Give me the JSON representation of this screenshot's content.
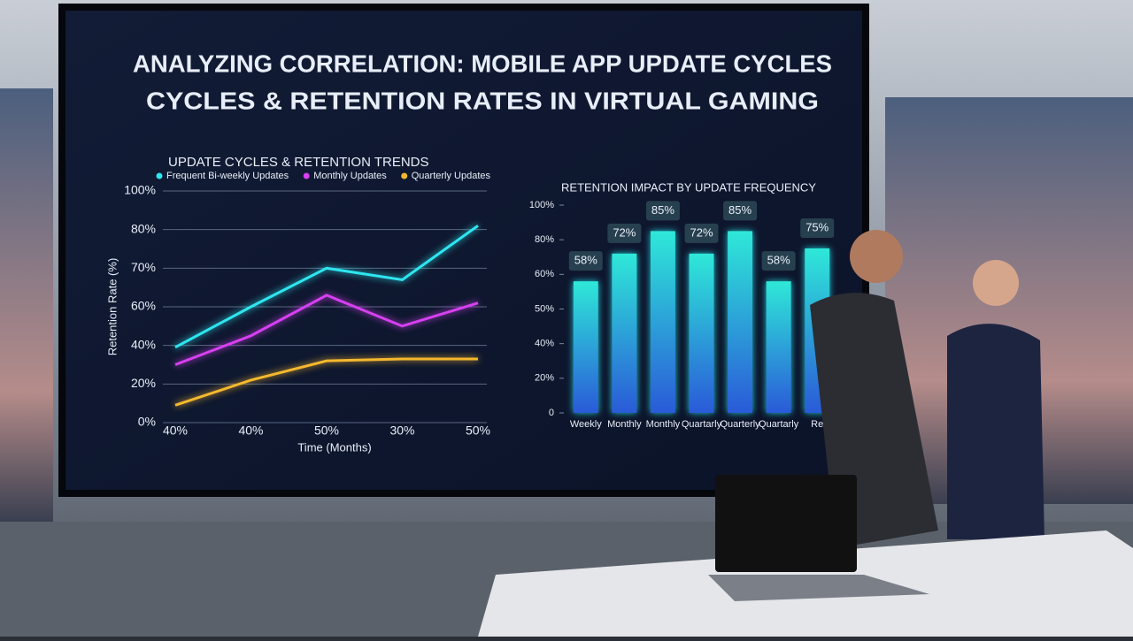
{
  "screen_title": [
    "ANALYZING CORRELATION: MOBILE APP UPDATE CYCLES",
    "CYCLES & RETENTION RATES IN VIRTUAL GAMING"
  ],
  "chart_data": [
    {
      "type": "line",
      "title": "UPDATE CYCLES & RETENTION TRENDS",
      "x_label": "Time (Months)",
      "y_label": "Retention Rate (%)",
      "categories": [
        "40%",
        "40%",
        "50%",
        "30%",
        "50%"
      ],
      "series": [
        {
          "name": "Frequent Bi-weekly Updates",
          "color": "#2ee6f0",
          "values": [
            39,
            60,
            70,
            67,
            82
          ]
        },
        {
          "name": "Monthly Updates",
          "color": "#d640f0",
          "values": [
            30,
            45,
            63,
            50,
            61
          ]
        },
        {
          "name": "Quarterly Updates",
          "color": "#f5b82e",
          "values": [
            9,
            22,
            32,
            33,
            33
          ]
        }
      ],
      "ylim": [
        0,
        100
      ],
      "yticks": [
        {
          "value": 0,
          "label": "0%"
        },
        {
          "value": 20,
          "label": "20%"
        },
        {
          "value": 40,
          "label": "40%"
        },
        {
          "value": 60,
          "label": "60%"
        },
        {
          "value": 70,
          "label": "70%"
        },
        {
          "value": 80,
          "label": "80%"
        },
        {
          "value": 100,
          "label": "100%"
        }
      ],
      "grid": true
    },
    {
      "type": "bar",
      "title": "RETENTION IMPACT BY UPDATE FREQUENCY",
      "categories": [
        "Weekly",
        "Monthly",
        "Monthly",
        "Quartarly",
        "Quarterly",
        "Quartarly",
        "Re"
      ],
      "values": [
        58,
        72,
        85,
        72,
        85,
        58,
        75
      ],
      "value_labels": [
        "58%",
        "72%",
        "85%",
        "72%",
        "85%",
        "58%",
        "75%"
      ],
      "color": "#22c9d6",
      "ylim": [
        0,
        100
      ],
      "yticks": [
        0,
        {
          "value": 20,
          "label": "20%"
        },
        {
          "value": 40,
          "label": "40%"
        },
        {
          "value": 50,
          "label": "50%"
        },
        {
          "value": 60,
          "label": "60%"
        },
        {
          "value": 80,
          "label": "80%"
        },
        {
          "value": 100,
          "label": "100%"
        }
      ],
      "grid": false
    }
  ]
}
